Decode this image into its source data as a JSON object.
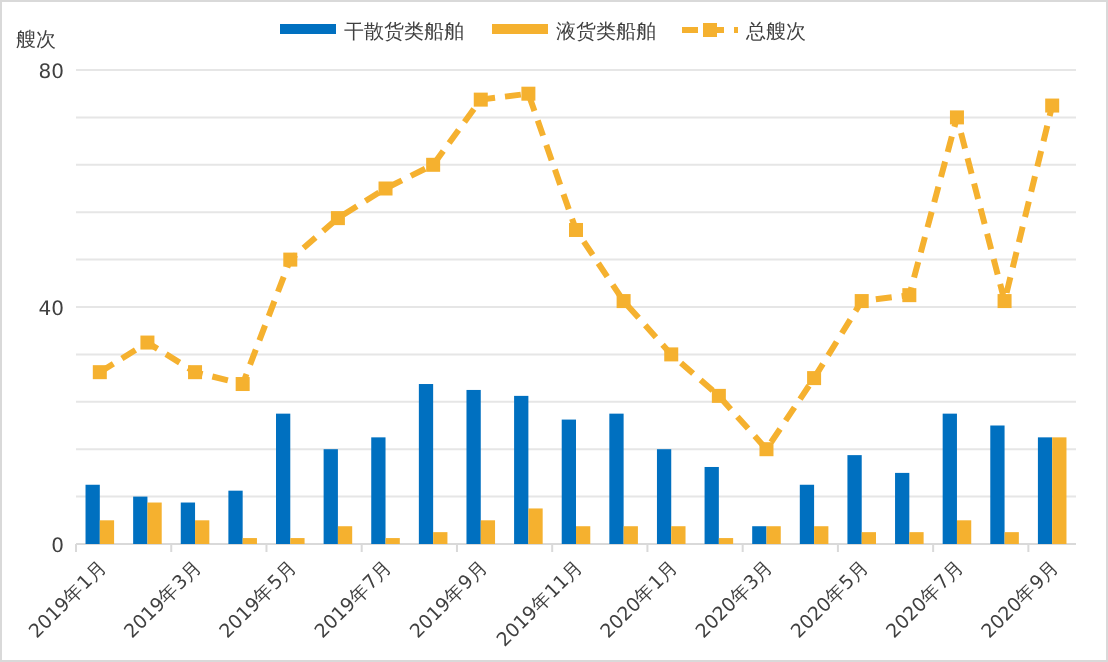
{
  "chart_data": {
    "type": "bar",
    "ylabel": "艘次",
    "categories": [
      "2019年1月",
      null,
      "2019年3月",
      null,
      "2019年5月",
      null,
      "2019年7月",
      null,
      "2019年9月",
      null,
      "2019年11月",
      null,
      "2020年1月",
      null,
      "2020年3月",
      null,
      "2020年5月",
      null,
      "2020年7月",
      null,
      "2020年9月"
    ],
    "series": [
      {
        "name": "干散货类船舶",
        "color": "#0070c0",
        "values": [
          10,
          8,
          7,
          9,
          22,
          16,
          18,
          27,
          26,
          25,
          21,
          22,
          16,
          13,
          3,
          10,
          15,
          12,
          22,
          20,
          18
        ]
      },
      {
        "name": "液货类船舶",
        "color": "#f5b12f",
        "values": [
          4,
          7,
          4,
          1,
          1,
          3,
          1,
          2,
          4,
          6,
          3,
          3,
          3,
          1,
          3,
          3,
          2,
          2,
          4,
          2,
          18
        ]
      },
      {
        "name": "总艘次",
        "type": "line",
        "color": "#f5b12f",
        "line_style": "dashed",
        "marker": "square",
        "values": [
          29,
          34,
          29,
          27,
          48,
          55,
          60,
          64,
          75,
          76,
          53,
          41,
          32,
          25,
          16,
          28,
          41,
          42,
          72,
          41,
          74
        ]
      }
    ],
    "ylim": [
      0,
      80
    ],
    "yticks": [
      0,
      {
        "value": 8,
        "label": null
      },
      {
        "value": 16,
        "label": null
      },
      {
        "value": 24,
        "label": null
      },
      {
        "value": 32,
        "label": null
      },
      40,
      {
        "value": 48,
        "label": null
      },
      {
        "value": 56,
        "label": null
      },
      {
        "value": 64,
        "label": null
      },
      {
        "value": 72,
        "label": null
      },
      80
    ],
    "grid": "y",
    "legend": "top"
  }
}
